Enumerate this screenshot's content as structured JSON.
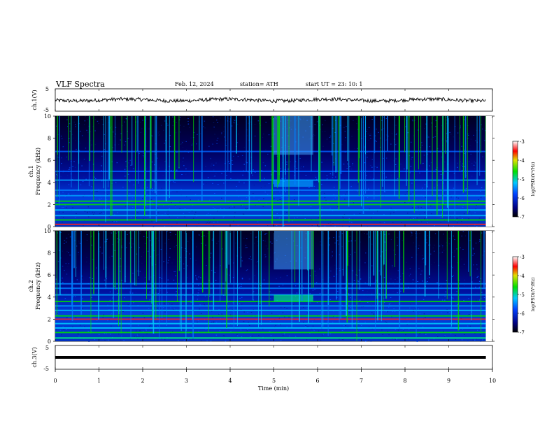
{
  "header": {
    "title": "VLF  Spectra",
    "date": "Feb. 12, 2024",
    "station": "station= ATH",
    "start": "start  UT  =   23: 10: 1"
  },
  "chart_data": [
    {
      "type": "line",
      "name": "ch1-waveform",
      "ylabel": "ch.1(V)",
      "ylim": [
        -5,
        5
      ],
      "y_ticks": [
        "5",
        "-5"
      ],
      "x": [
        0,
        10
      ],
      "baseline_value": 0
    },
    {
      "type": "heatmap",
      "name": "ch1-spectrogram",
      "ylabel_lines": [
        "ch.1",
        "Frequency  (kHz)"
      ],
      "ylim": [
        0,
        10
      ],
      "y_ticks": [
        "0",
        "2",
        "4",
        "6",
        "8",
        "10"
      ],
      "colorbar": {
        "label": "log(PSD)(V²/Hz)",
        "ticks": [
          "-3",
          "-4",
          "-5",
          "-6",
          "-7"
        ],
        "range": [
          -7,
          -3
        ]
      }
    },
    {
      "type": "heatmap",
      "name": "ch2-spectrogram",
      "ylabel_lines": [
        "ch.2",
        "Frequency  (kHz)"
      ],
      "ylim": [
        0,
        10
      ],
      "y_ticks": [
        "0",
        "2",
        "4",
        "6",
        "8",
        "10"
      ],
      "colorbar": {
        "label": "log(PSD)(V²/Hz)",
        "ticks": [
          "-3",
          "-4",
          "-5",
          "-6",
          "-7"
        ],
        "range": [
          -7,
          -3
        ]
      }
    },
    {
      "type": "line",
      "name": "ch3-waveform",
      "ylabel": "ch.3(V)",
      "ylim": [
        -5,
        5
      ],
      "y_ticks": [
        "5",
        "-5"
      ],
      "baseline_value": -2
    }
  ],
  "x_axis": {
    "label": "Time  (min)",
    "ticks": [
      "0",
      "1",
      "2",
      "3",
      "4",
      "5",
      "6",
      "7",
      "8",
      "9",
      "10"
    ],
    "range": [
      0,
      10
    ],
    "data_end": 9.85
  },
  "colors": {
    "background": "#000033",
    "low": "#0000a0",
    "mid": "#00c8ff",
    "green": "#00e000",
    "high": "#ff0000"
  }
}
